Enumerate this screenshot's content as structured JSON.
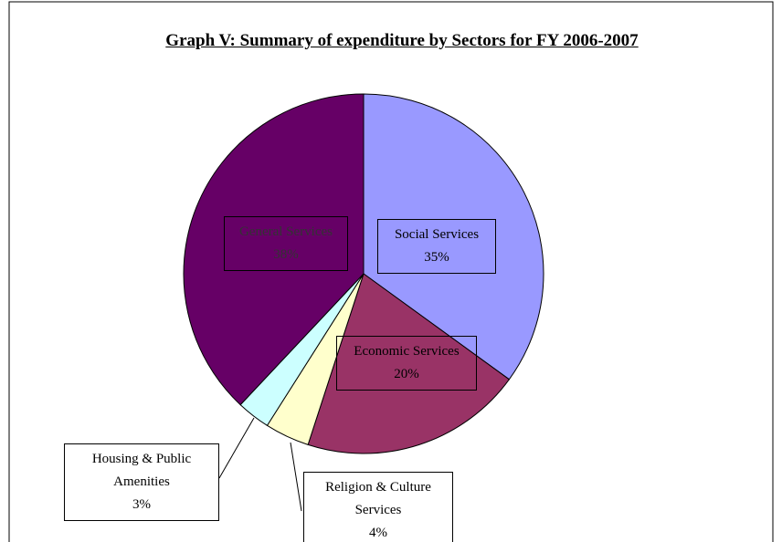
{
  "chart_data": {
    "type": "pie",
    "title": "Graph V: Summary of expenditure by Sectors for FY 2006-2007",
    "categories": [
      "Social Services",
      "Economic Services",
      "Religion & Culture Services",
      "Housing & Public Amenities",
      "General Services"
    ],
    "values": [
      35,
      20,
      4,
      3,
      38
    ],
    "value_labels": [
      "35%",
      "20%",
      "4%",
      "3%",
      "38%"
    ],
    "colors": [
      "#9999ff",
      "#993366",
      "#ffffcc",
      "#ccffff",
      "#660066"
    ]
  }
}
